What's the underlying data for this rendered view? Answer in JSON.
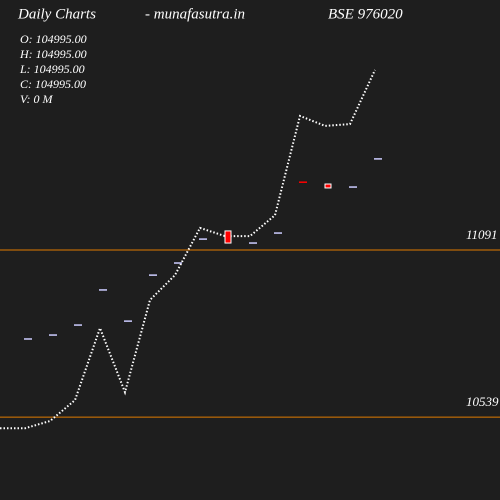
{
  "chart_data": {
    "type": "candlestick",
    "title": "Daily Charts",
    "site": "-  munafasutra.in",
    "symbol": "BSE 976020",
    "ohlc": [
      "O: 104995.00",
      "H: 104995.00",
      "L: 104995.00",
      "C: 104995.00",
      "V: 0  M"
    ],
    "ylim": [
      10265,
      11917
    ],
    "levels": [
      11091,
      10539
    ],
    "level_color": "#e07b00",
    "open": [
      10797,
      10810,
      10843,
      10959,
      10856,
      11008,
      11048,
      11127,
      11154,
      11114,
      11147,
      11315,
      11309,
      11299,
      11392
    ],
    "close": [
      10797,
      10810,
      10843,
      10959,
      10856,
      11008,
      11048,
      11127,
      11114,
      11114,
      11147,
      11312,
      11296,
      11299,
      11392
    ],
    "colors": [
      "#ccccff",
      "#ccccff",
      "#ccccff",
      "#ccccff",
      "#ccccff",
      "#ccccff",
      "#ccccff",
      "#ccccff",
      "#ff0000",
      "#ccccff",
      "#ccccff",
      "#ff0000",
      "#ff0000",
      "#ccccff",
      "#ccccff"
    ],
    "line": {
      "color": "#ffffff",
      "values": [
        10502,
        10502,
        10526,
        10595,
        10833,
        10621,
        10926,
        11008,
        11164,
        11137,
        11137,
        11206,
        11534,
        11501,
        11507,
        11686
      ]
    }
  }
}
